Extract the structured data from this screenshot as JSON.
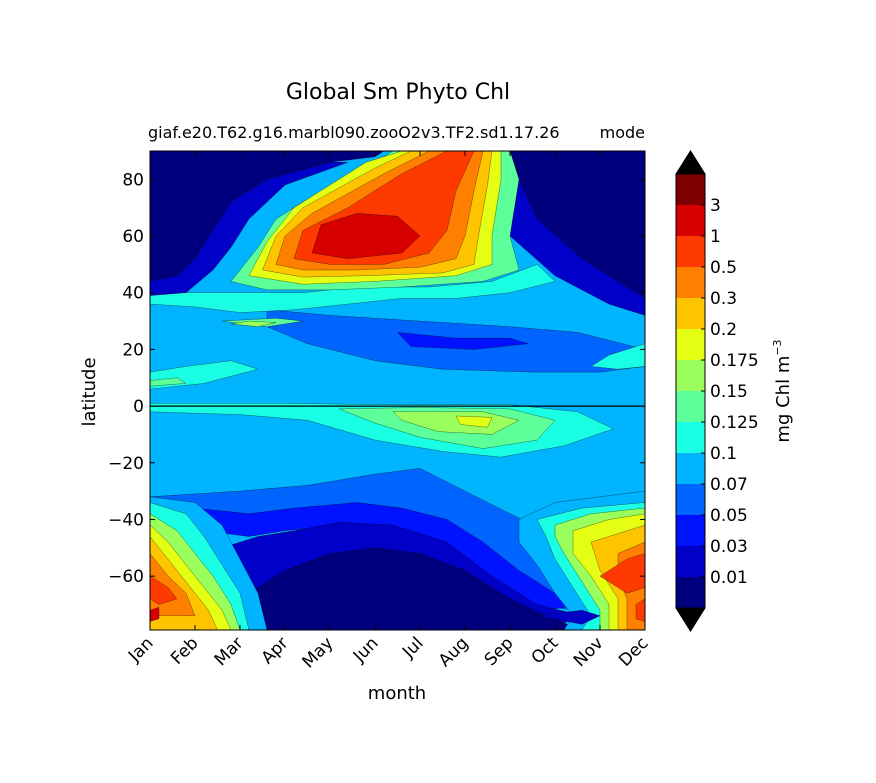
{
  "chart_data": {
    "type": "heatmap",
    "subtype": "filled-contour",
    "title": "Global Sm Phyto Chl",
    "subtitle_left": "giaf.e20.T62.g16.marbl090.zooO2v3.TF2.sd1.17.26",
    "subtitle_right": "mode",
    "xlabel": "month",
    "ylabel": "latitude",
    "x_tick_labels": [
      "Jan",
      "Feb",
      "Mar",
      "Apr",
      "May",
      "Jun",
      "Jul",
      "Aug",
      "Sep",
      "Oct",
      "Nov",
      "Dec"
    ],
    "y_ticks": [
      -60,
      -40,
      -20,
      0,
      20,
      40,
      60,
      80
    ],
    "y_tick_labels": [
      "−60",
      "−40",
      "−20",
      "0",
      "20",
      "40",
      "60",
      "80"
    ],
    "ylim": [
      -79,
      90
    ],
    "colorbar": {
      "label": "mg Chl m",
      "label_exponent": "−3",
      "levels": [
        0.01,
        0.03,
        0.05,
        0.07,
        0.1,
        0.125,
        0.15,
        0.175,
        0.2,
        0.3,
        0.5,
        1,
        3
      ],
      "tick_labels": [
        "0.01",
        "0.03",
        "0.05",
        "0.07",
        "0.1",
        "0.125",
        "0.15",
        "0.175",
        "0.2",
        "0.3",
        "0.5",
        "1",
        "3"
      ],
      "colors": [
        "#00007f",
        "#0000c8",
        "#0012ff",
        "#0064ff",
        "#00b4ff",
        "#1affe4",
        "#5cff9a",
        "#9aff5c",
        "#e4ff13",
        "#ffc400",
        "#ff8000",
        "#ff3a00",
        "#d60000",
        "#7f0000"
      ],
      "extend": "both",
      "under_color": "#000000",
      "over_color": "#000000"
    }
  }
}
